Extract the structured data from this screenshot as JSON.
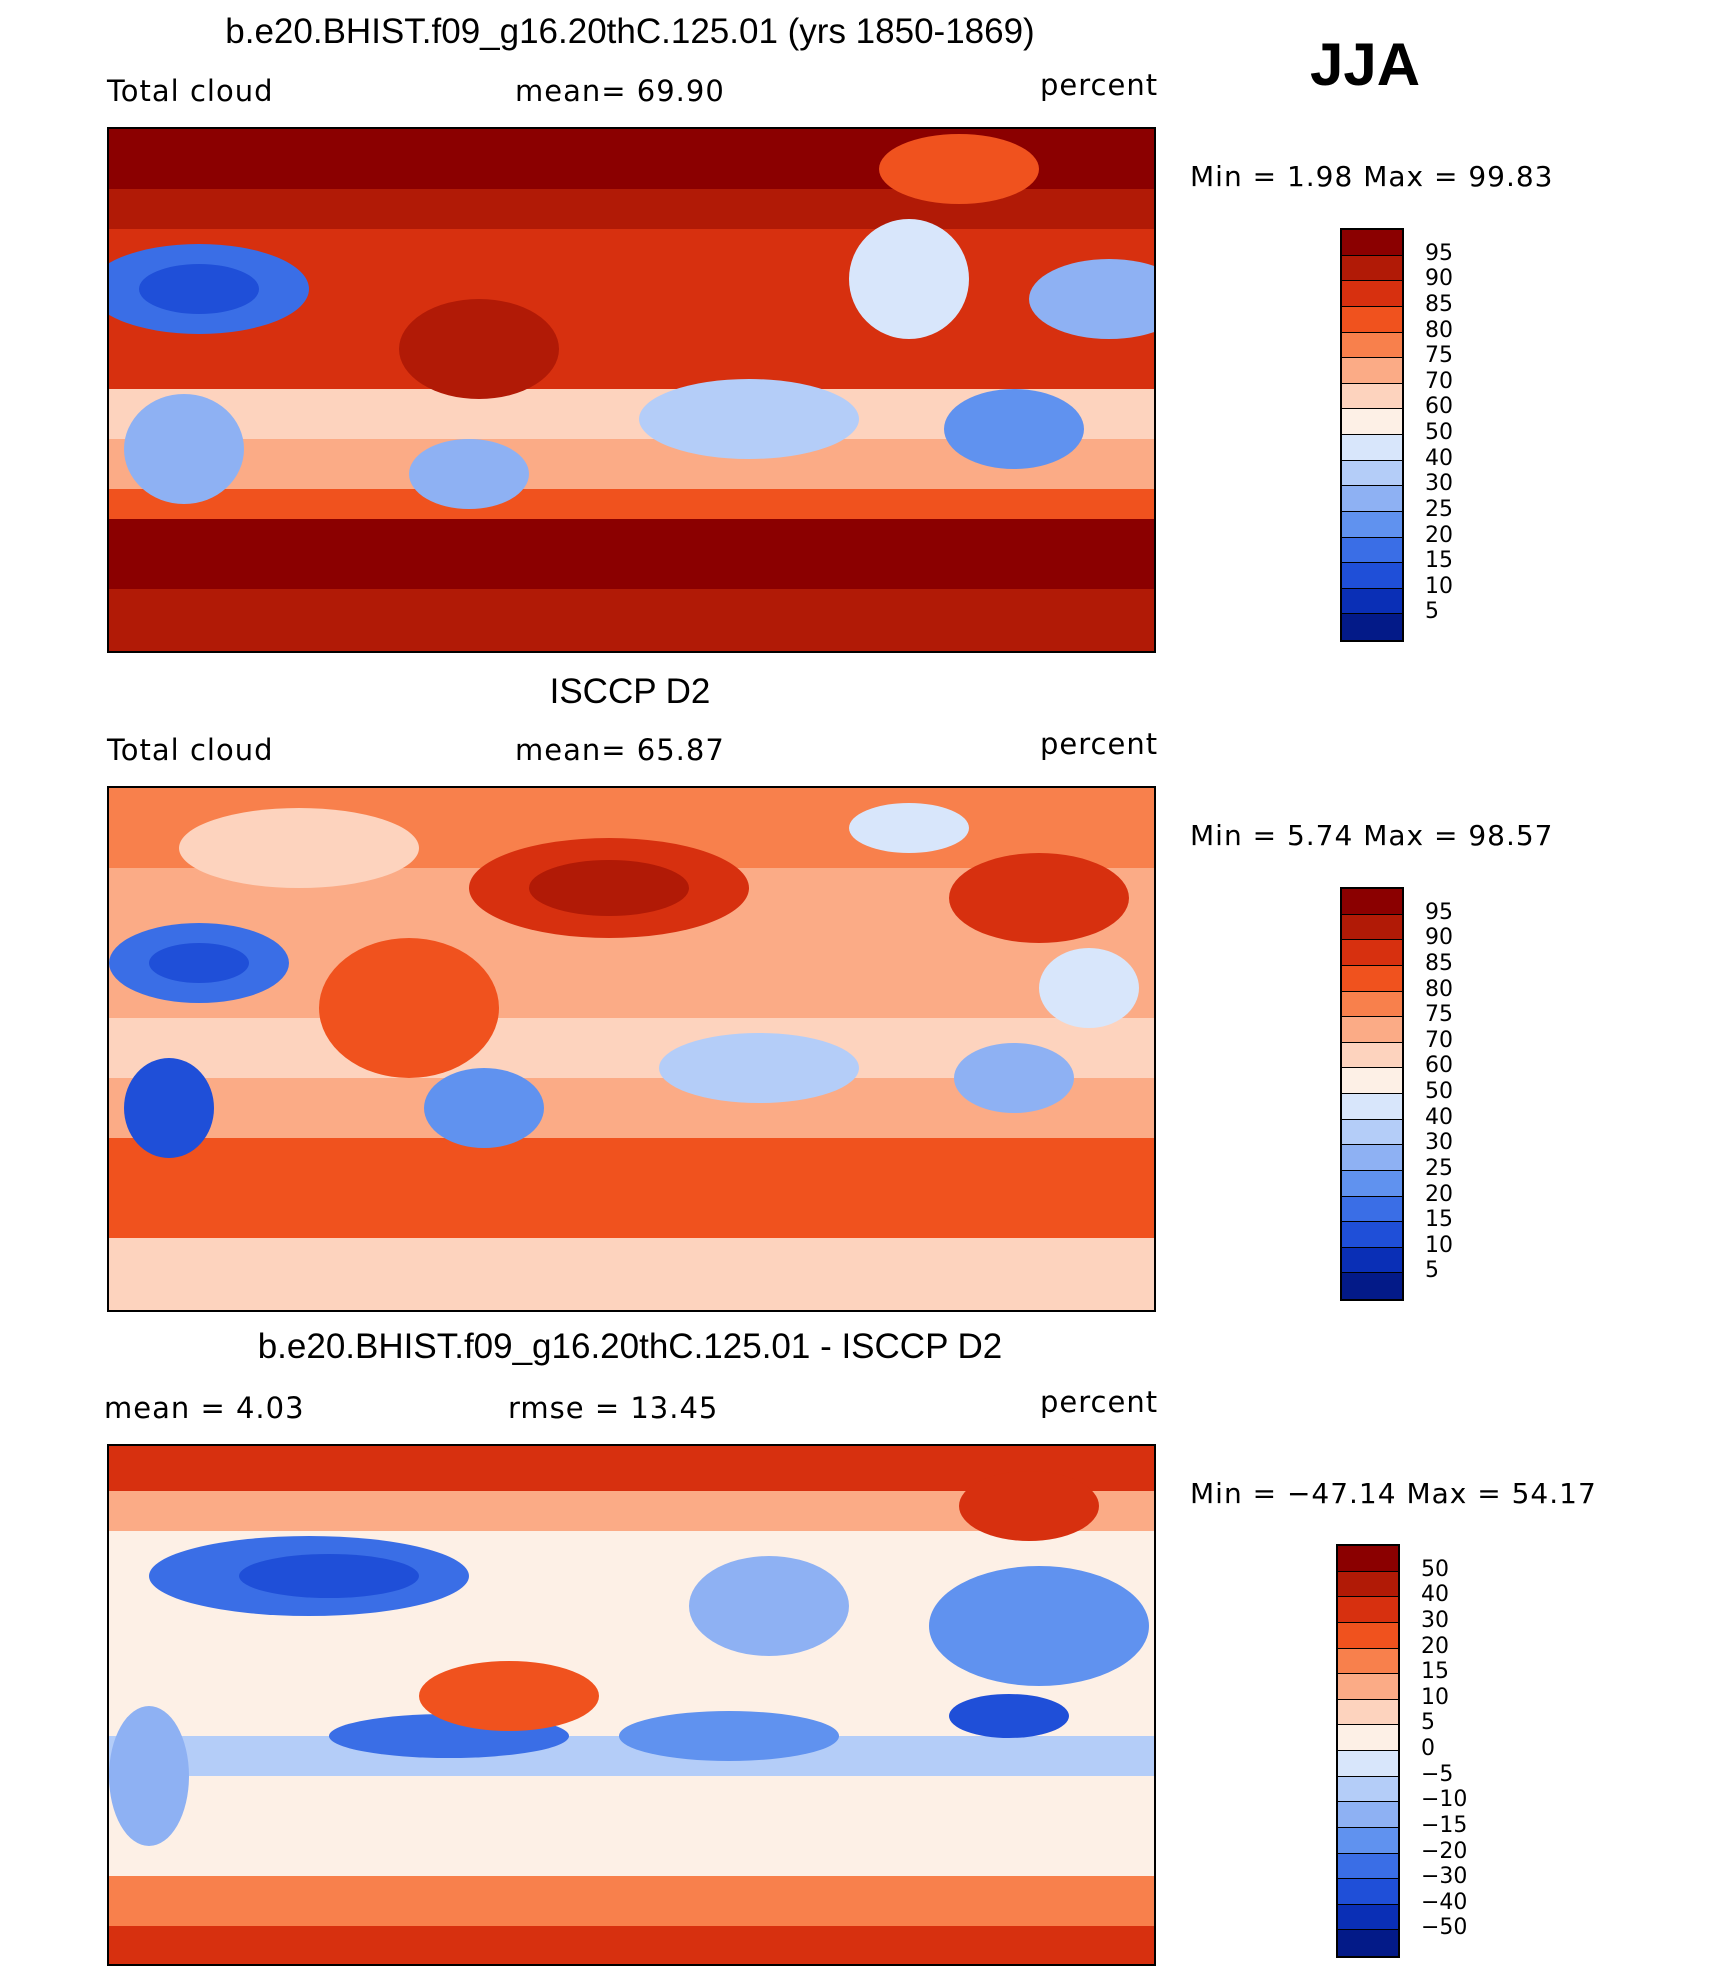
{
  "season": "JJA",
  "panels": [
    {
      "title": "b.e20.BHIST.f09_g16.20thC.125.01 (yrs 1850-1869)",
      "left_label": "Total cloud",
      "mid_label": "mean=   69.90",
      "right_label": "percent",
      "minmax": "Min =    1.98  Max =   99.83",
      "colorbar_labels": [
        "95",
        "90",
        "85",
        "80",
        "75",
        "70",
        "60",
        "50",
        "40",
        "30",
        "25",
        "20",
        "15",
        "10",
        "5"
      ],
      "colorbar_colors": [
        "#8b0000",
        "#b11a06",
        "#d7300f",
        "#f0521e",
        "#f8804c",
        "#fbab86",
        "#fdd3be",
        "#fdf0e6",
        "#d8e6fb",
        "#b4cdf8",
        "#8eb1f3",
        "#6092ef",
        "#3a6ee6",
        "#1f4fd8",
        "#0a2fb6",
        "#031a88"
      ]
    },
    {
      "title": "ISCCP D2",
      "left_label": "Total cloud",
      "mid_label": "mean=   65.87",
      "right_label": "percent",
      "minmax": "Min =    5.74  Max =   98.57",
      "colorbar_labels": [
        "95",
        "90",
        "85",
        "80",
        "75",
        "70",
        "60",
        "50",
        "40",
        "30",
        "25",
        "20",
        "15",
        "10",
        "5"
      ],
      "colorbar_colors": [
        "#8b0000",
        "#b11a06",
        "#d7300f",
        "#f0521e",
        "#f8804c",
        "#fbab86",
        "#fdd3be",
        "#fdf0e6",
        "#d8e6fb",
        "#b4cdf8",
        "#8eb1f3",
        "#6092ef",
        "#3a6ee6",
        "#1f4fd8",
        "#0a2fb6",
        "#031a88"
      ]
    },
    {
      "title": "b.e20.BHIST.f09_g16.20thC.125.01 - ISCCP D2",
      "left_label": "mean =     4.03",
      "mid_label": "rmse =    13.45",
      "right_label": "percent",
      "minmax": "Min = −47.14  Max =   54.17",
      "colorbar_labels": [
        "50",
        "40",
        "30",
        "20",
        "15",
        "10",
        "5",
        "0",
        "−5",
        "−10",
        "−15",
        "−20",
        "−30",
        "−40",
        "−50"
      ],
      "colorbar_colors": [
        "#8b0000",
        "#b11a06",
        "#d7300f",
        "#f0521e",
        "#f8804c",
        "#fbab86",
        "#fdd3be",
        "#fdf0e6",
        "#d8e6fb",
        "#b4cdf8",
        "#8eb1f3",
        "#6092ef",
        "#3a6ee6",
        "#1f4fd8",
        "#0a2fb6",
        "#031a88"
      ]
    }
  ]
}
